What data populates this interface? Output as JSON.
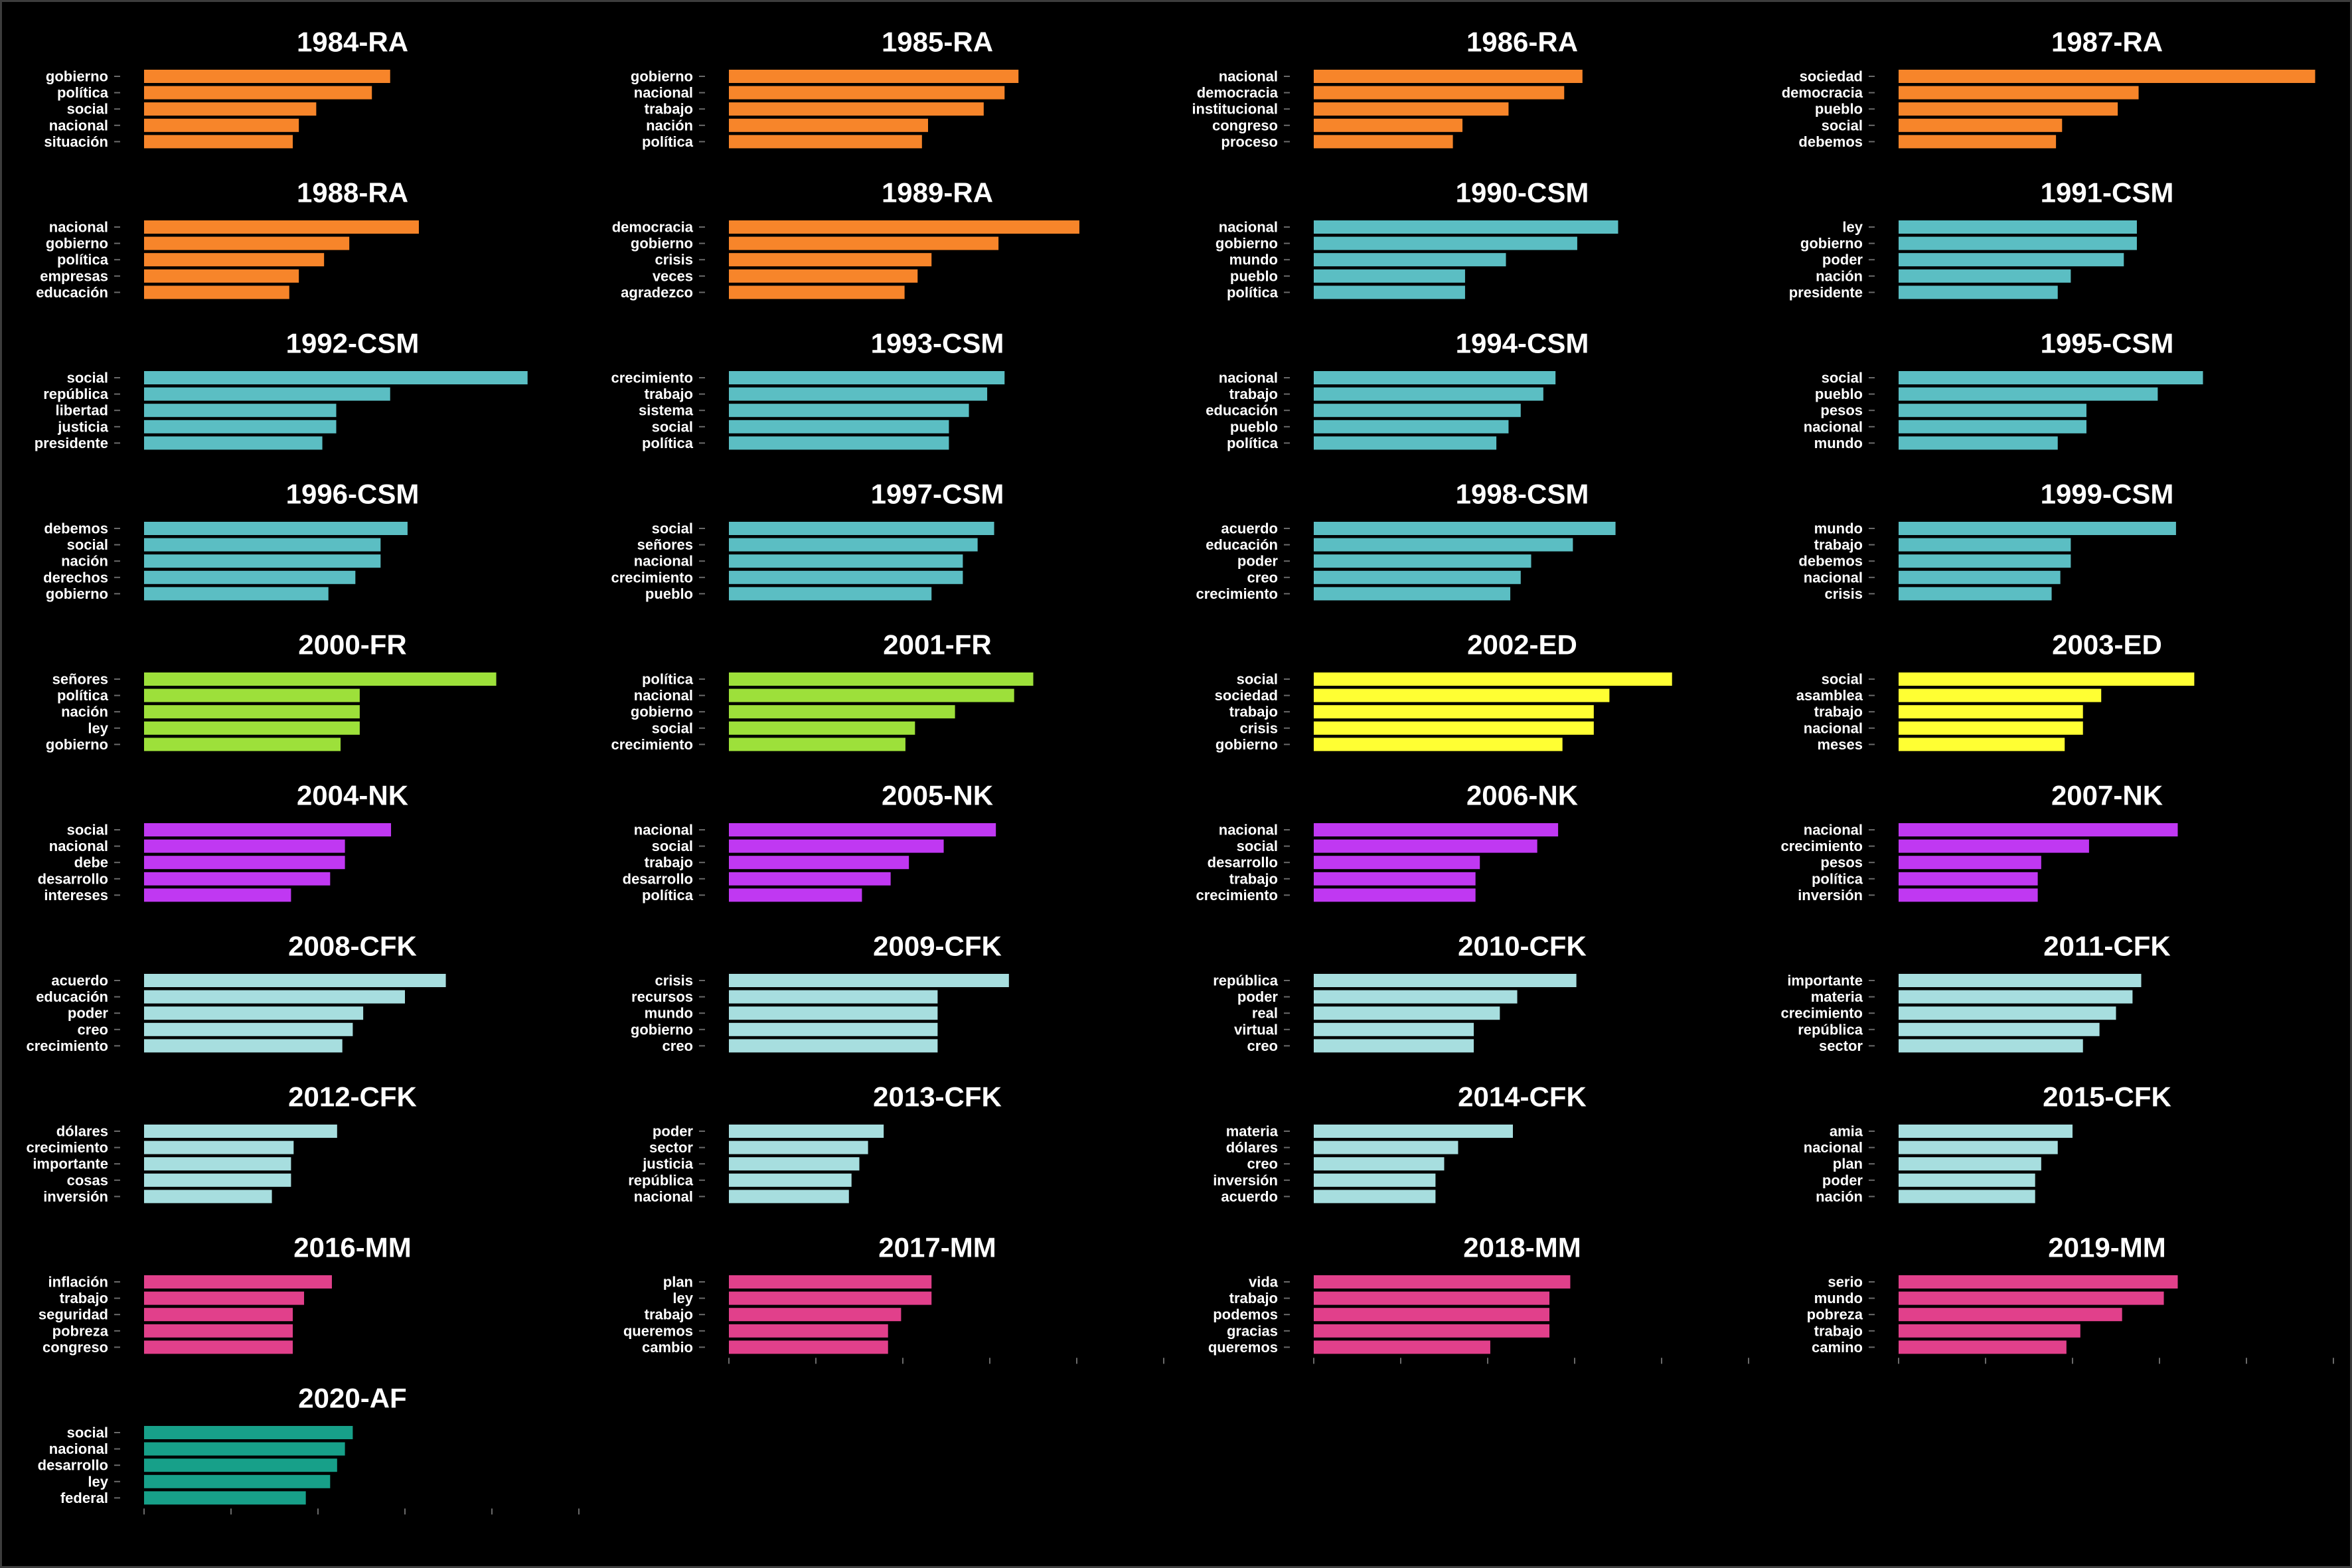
{
  "axes": {
    "orientation": "horizontal",
    "xlim": [
      0,
      5
    ],
    "grid": false,
    "x_tick_labels": false
  },
  "chart_data": [
    {
      "type": "bar",
      "title": "1984-RA",
      "color": "#F7852A",
      "categories": [
        "gobierno",
        "política",
        "social",
        "nacional",
        "situación"
      ],
      "values": [
        2.83,
        2.62,
        1.98,
        1.78,
        1.71
      ]
    },
    {
      "type": "bar",
      "title": "1985-RA",
      "color": "#F7852A",
      "categories": [
        "gobierno",
        "nacional",
        "trabajo",
        "nación",
        "política"
      ],
      "values": [
        3.33,
        3.17,
        2.93,
        2.29,
        2.22
      ]
    },
    {
      "type": "bar",
      "title": "1986-RA",
      "color": "#F7852A",
      "categories": [
        "nacional",
        "democracia",
        "institucional",
        "congreso",
        "proceso"
      ],
      "values": [
        3.09,
        2.88,
        2.24,
        1.71,
        1.6
      ]
    },
    {
      "type": "bar",
      "title": "1987-RA",
      "color": "#F7852A",
      "categories": [
        "sociedad",
        "democracia",
        "pueblo",
        "social",
        "debemos"
      ],
      "values": [
        4.79,
        2.76,
        2.52,
        1.88,
        1.81
      ]
    },
    {
      "type": "bar",
      "title": "1988-RA",
      "color": "#F7852A",
      "categories": [
        "nacional",
        "gobierno",
        "política",
        "empresas",
        "educación"
      ],
      "values": [
        3.16,
        2.36,
        2.07,
        1.78,
        1.67
      ]
    },
    {
      "type": "bar",
      "title": "1989-RA",
      "color": "#F7852A",
      "categories": [
        "democracia",
        "gobierno",
        "crisis",
        "veces",
        "agradezco"
      ],
      "values": [
        4.03,
        3.1,
        2.33,
        2.17,
        2.02
      ]
    },
    {
      "type": "bar",
      "title": "1990-CSM",
      "color": "#5BBEC3",
      "categories": [
        "nacional",
        "gobierno",
        "mundo",
        "pueblo",
        "política"
      ],
      "values": [
        3.5,
        3.03,
        2.21,
        1.74,
        1.74
      ]
    },
    {
      "type": "bar",
      "title": "1991-CSM",
      "color": "#5BBEC3",
      "categories": [
        "ley",
        "gobierno",
        "poder",
        "nación",
        "presidente"
      ],
      "values": [
        2.74,
        2.74,
        2.59,
        1.98,
        1.83
      ]
    },
    {
      "type": "bar",
      "title": "1992-CSM",
      "color": "#5BBEC3",
      "categories": [
        "social",
        "república",
        "libertad",
        "justicia",
        "presidente"
      ],
      "values": [
        4.41,
        2.83,
        2.21,
        2.21,
        2.05
      ]
    },
    {
      "type": "bar",
      "title": "1993-CSM",
      "color": "#5BBEC3",
      "categories": [
        "crecimiento",
        "trabajo",
        "sistema",
        "social",
        "política"
      ],
      "values": [
        3.17,
        2.97,
        2.76,
        2.53,
        2.53
      ]
    },
    {
      "type": "bar",
      "title": "1994-CSM",
      "color": "#5BBEC3",
      "categories": [
        "nacional",
        "trabajo",
        "educación",
        "pueblo",
        "política"
      ],
      "values": [
        2.78,
        2.64,
        2.38,
        2.24,
        2.1
      ]
    },
    {
      "type": "bar",
      "title": "1995-CSM",
      "color": "#5BBEC3",
      "categories": [
        "social",
        "pueblo",
        "pesos",
        "nacional",
        "mundo"
      ],
      "values": [
        3.5,
        2.98,
        2.16,
        2.16,
        1.83
      ]
    },
    {
      "type": "bar",
      "title": "1996-CSM",
      "color": "#5BBEC3",
      "categories": [
        "debemos",
        "social",
        "nación",
        "derechos",
        "gobierno"
      ],
      "values": [
        3.03,
        2.72,
        2.72,
        2.43,
        2.12
      ]
    },
    {
      "type": "bar",
      "title": "1997-CSM",
      "color": "#5BBEC3",
      "categories": [
        "social",
        "señores",
        "nacional",
        "crecimiento",
        "pueblo"
      ],
      "values": [
        3.05,
        2.86,
        2.69,
        2.69,
        2.33
      ]
    },
    {
      "type": "bar",
      "title": "1998-CSM",
      "color": "#5BBEC3",
      "categories": [
        "acuerdo",
        "educación",
        "poder",
        "creo",
        "crecimiento"
      ],
      "values": [
        3.47,
        2.98,
        2.5,
        2.38,
        2.26
      ]
    },
    {
      "type": "bar",
      "title": "1999-CSM",
      "color": "#5BBEC3",
      "categories": [
        "mundo",
        "trabajo",
        "debemos",
        "nacional",
        "crisis"
      ],
      "values": [
        3.19,
        1.98,
        1.98,
        1.86,
        1.76
      ]
    },
    {
      "type": "bar",
      "title": "2000-FR",
      "color": "#9DE03A",
      "categories": [
        "señores",
        "política",
        "nación",
        "ley",
        "gobierno"
      ],
      "values": [
        4.05,
        2.48,
        2.48,
        2.48,
        2.26
      ]
    },
    {
      "type": "bar",
      "title": "2001-FR",
      "color": "#9DE03A",
      "categories": [
        "política",
        "nacional",
        "gobierno",
        "social",
        "crecimiento"
      ],
      "values": [
        3.5,
        3.28,
        2.6,
        2.14,
        2.03
      ]
    },
    {
      "type": "bar",
      "title": "2002-ED",
      "color": "#FFFF33",
      "categories": [
        "social",
        "sociedad",
        "trabajo",
        "crisis",
        "gobierno"
      ],
      "values": [
        4.12,
        3.4,
        3.22,
        3.22,
        2.86
      ]
    },
    {
      "type": "bar",
      "title": "2003-ED",
      "color": "#FFFF33",
      "categories": [
        "social",
        "asamblea",
        "trabajo",
        "nacional",
        "meses"
      ],
      "values": [
        3.4,
        2.33,
        2.12,
        2.12,
        1.91
      ]
    },
    {
      "type": "bar",
      "title": "2004-NK",
      "color": "#C038F2",
      "categories": [
        "social",
        "nacional",
        "debe",
        "desarrollo",
        "intereses"
      ],
      "values": [
        2.84,
        2.31,
        2.31,
        2.14,
        1.69
      ]
    },
    {
      "type": "bar",
      "title": "2005-NK",
      "color": "#C038F2",
      "categories": [
        "nacional",
        "social",
        "trabajo",
        "desarrollo",
        "política"
      ],
      "values": [
        3.07,
        2.47,
        2.07,
        1.86,
        1.53
      ]
    },
    {
      "type": "bar",
      "title": "2006-NK",
      "color": "#C038F2",
      "categories": [
        "nacional",
        "social",
        "desarrollo",
        "trabajo",
        "crecimiento"
      ],
      "values": [
        2.81,
        2.57,
        1.91,
        1.86,
        1.86
      ]
    },
    {
      "type": "bar",
      "title": "2007-NK",
      "color": "#C038F2",
      "categories": [
        "nacional",
        "crecimiento",
        "pesos",
        "política",
        "inversión"
      ],
      "values": [
        3.21,
        2.19,
        1.64,
        1.6,
        1.6
      ]
    },
    {
      "type": "bar",
      "title": "2008-CFK",
      "color": "#A7DEDF",
      "categories": [
        "acuerdo",
        "educación",
        "poder",
        "creo",
        "crecimiento"
      ],
      "values": [
        3.47,
        3.0,
        2.52,
        2.4,
        2.28
      ]
    },
    {
      "type": "bar",
      "title": "2009-CFK",
      "color": "#A7DEDF",
      "categories": [
        "crisis",
        "recursos",
        "mundo",
        "gobierno",
        "creo"
      ],
      "values": [
        3.22,
        2.4,
        2.4,
        2.4,
        2.4
      ]
    },
    {
      "type": "bar",
      "title": "2010-CFK",
      "color": "#A7DEDF",
      "categories": [
        "república",
        "poder",
        "real",
        "virtual",
        "creo"
      ],
      "values": [
        3.02,
        2.34,
        2.14,
        1.84,
        1.84
      ]
    },
    {
      "type": "bar",
      "title": "2011-CFK",
      "color": "#A7DEDF",
      "categories": [
        "importante",
        "materia",
        "crecimiento",
        "república",
        "sector"
      ],
      "values": [
        2.79,
        2.69,
        2.5,
        2.31,
        2.12
      ]
    },
    {
      "type": "bar",
      "title": "2012-CFK",
      "color": "#A7DEDF",
      "categories": [
        "dólares",
        "crecimiento",
        "importante",
        "cosas",
        "inversión"
      ],
      "values": [
        2.22,
        1.72,
        1.69,
        1.69,
        1.47
      ]
    },
    {
      "type": "bar",
      "title": "2013-CFK",
      "color": "#A7DEDF",
      "categories": [
        "poder",
        "sector",
        "justicia",
        "república",
        "nacional"
      ],
      "values": [
        1.78,
        1.6,
        1.5,
        1.41,
        1.38
      ]
    },
    {
      "type": "bar",
      "title": "2014-CFK",
      "color": "#A7DEDF",
      "categories": [
        "materia",
        "dólares",
        "creo",
        "inversión",
        "acuerdo"
      ],
      "values": [
        2.29,
        1.66,
        1.5,
        1.4,
        1.4
      ]
    },
    {
      "type": "bar",
      "title": "2015-CFK",
      "color": "#A7DEDF",
      "categories": [
        "amia",
        "nacional",
        "plan",
        "poder",
        "nación"
      ],
      "values": [
        2.0,
        1.83,
        1.64,
        1.57,
        1.57
      ]
    },
    {
      "type": "bar",
      "title": "2016-MM",
      "color": "#E1408B",
      "categories": [
        "inflación",
        "trabajo",
        "seguridad",
        "pobreza",
        "congreso"
      ],
      "values": [
        2.16,
        1.84,
        1.71,
        1.71,
        1.71
      ]
    },
    {
      "type": "bar",
      "title": "2017-MM",
      "color": "#E1408B",
      "categories": [
        "plan",
        "ley",
        "trabajo",
        "queremos",
        "cambio"
      ],
      "values": [
        2.33,
        2.33,
        1.98,
        1.83,
        1.83
      ]
    },
    {
      "type": "bar",
      "title": "2018-MM",
      "color": "#E1408B",
      "categories": [
        "vida",
        "trabajo",
        "podemos",
        "gracias",
        "queremos"
      ],
      "values": [
        2.95,
        2.71,
        2.71,
        2.71,
        2.03
      ]
    },
    {
      "type": "bar",
      "title": "2019-MM",
      "color": "#E1408B",
      "categories": [
        "serio",
        "mundo",
        "pobreza",
        "trabajo",
        "camino"
      ],
      "values": [
        3.21,
        3.05,
        2.57,
        2.09,
        1.93
      ]
    },
    {
      "type": "bar",
      "title": "2020-AF",
      "color": "#17A089",
      "categories": [
        "social",
        "nacional",
        "desarrollo",
        "ley",
        "federal"
      ],
      "values": [
        2.4,
        2.31,
        2.22,
        2.14,
        1.86
      ]
    }
  ]
}
